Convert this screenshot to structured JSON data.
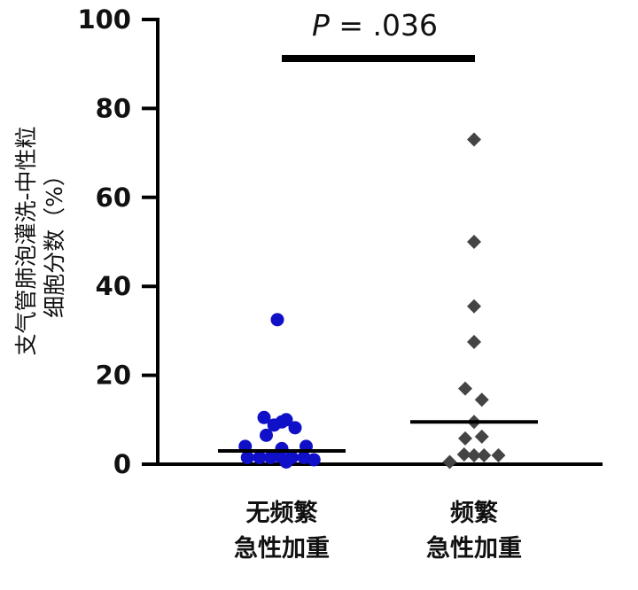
{
  "chart_data": {
    "type": "scatter",
    "ylabel_lines": [
      "支气管肺泡灌洗-中性粒",
      "细胞分数（%）"
    ],
    "ylim": [
      0,
      100
    ],
    "yticks": [
      "0",
      "20",
      "40",
      "60",
      "80",
      "100"
    ],
    "annotation": {
      "p_italic": "P",
      "p_rest": " = .036"
    },
    "groups": [
      {
        "label_lines": [
          "无频繁",
          "急性加重"
        ],
        "marker": "circle",
        "color": "#1010c8",
        "median": 3,
        "points": [
          {
            "dx": -0.2,
            "y": 32.5
          },
          {
            "dx": -0.8,
            "y": 10.5
          },
          {
            "dx": 0.2,
            "y": 10.0
          },
          {
            "dx": 0.0,
            "y": 9.5
          },
          {
            "dx": -0.35,
            "y": 8.8
          },
          {
            "dx": 0.6,
            "y": 8.2
          },
          {
            "dx": -0.7,
            "y": 6.5
          },
          {
            "dx": -1.65,
            "y": 4.0
          },
          {
            "dx": 1.1,
            "y": 4.0
          },
          {
            "dx": 0.0,
            "y": 3.5
          },
          {
            "dx": -1.55,
            "y": 1.5
          },
          {
            "dx": -1.0,
            "y": 1.5
          },
          {
            "dx": -0.5,
            "y": 1.5
          },
          {
            "dx": -0.1,
            "y": 1.8
          },
          {
            "dx": 0.45,
            "y": 1.5
          },
          {
            "dx": 1.0,
            "y": 1.5
          },
          {
            "dx": 1.45,
            "y": 1.0
          },
          {
            "dx": 0.2,
            "y": 0.5
          }
        ]
      },
      {
        "label_lines": [
          "频繁",
          "急性加重"
        ],
        "marker": "diamond",
        "color": "#444444",
        "median": 9.5,
        "points": [
          {
            "dx": 0.0,
            "y": 73.0
          },
          {
            "dx": 0.0,
            "y": 50.0
          },
          {
            "dx": 0.0,
            "y": 35.5
          },
          {
            "dx": 0.0,
            "y": 27.5
          },
          {
            "dx": -0.4,
            "y": 17.0
          },
          {
            "dx": 0.35,
            "y": 14.5
          },
          {
            "dx": 0.0,
            "y": 9.5
          },
          {
            "dx": -0.4,
            "y": 5.8
          },
          {
            "dx": 0.35,
            "y": 6.2
          },
          {
            "dx": -0.45,
            "y": 2.2
          },
          {
            "dx": 0.0,
            "y": 2.0
          },
          {
            "dx": 0.45,
            "y": 2.0
          },
          {
            "dx": -1.1,
            "y": 0.5
          },
          {
            "dx": 1.1,
            "y": 2.0
          }
        ]
      }
    ]
  }
}
